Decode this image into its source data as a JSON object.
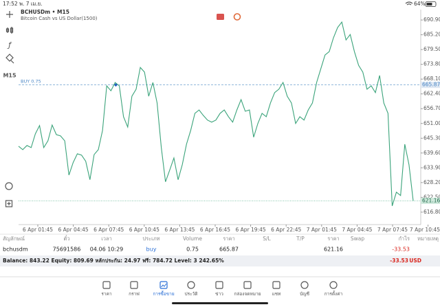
{
  "status_bar": {
    "time": "17:52",
    "date": "พ. 7 เม.ย.",
    "battery": "64%"
  },
  "toolbar": {
    "timeframe": "M15"
  },
  "chart": {
    "type": "line",
    "title": "BCHUSDm • M15",
    "subtitle": "Bitcoin Cash vs US Dollar(1500)",
    "color": "#3aa37a",
    "values": [
      642.2,
      640.9,
      642.5,
      641.7,
      647.0,
      650.2,
      641.7,
      644.3,
      650.4,
      646.7,
      646.2,
      644.3,
      631.1,
      635.9,
      639.3,
      638.8,
      636.4,
      629.3,
      639.0,
      640.9,
      648.3,
      665.5,
      663.6,
      666.8,
      665.5,
      653.6,
      649.6,
      661.5,
      664.2,
      672.6,
      670.8,
      661.5,
      666.8,
      658.9,
      641.7,
      628.5,
      633.0,
      637.7,
      629.3,
      635.1,
      643.0,
      648.3,
      654.9,
      656.2,
      654.1,
      652.3,
      651.5,
      652.3,
      654.9,
      656.2,
      653.6,
      651.5,
      656.2,
      660.2,
      655.7,
      656.2,
      645.7,
      651.0,
      654.9,
      653.6,
      658.9,
      662.9,
      664.2,
      666.8,
      661.5,
      658.9,
      651.0,
      653.6,
      652.3,
      656.2,
      658.9,
      666.8,
      672.1,
      677.4,
      678.7,
      684.0,
      688.0,
      690.1,
      683.2,
      685.3,
      678.7,
      673.4,
      670.8,
      664.2,
      665.5,
      662.9,
      669.5,
      658.9,
      654.9,
      619.2,
      624.5,
      623.2,
      643.0,
      635.1,
      621.2
    ],
    "ylim": [
      612.0,
      694.9
    ],
    "yticks": [
      {
        "value": 690.9,
        "label": "690.90"
      },
      {
        "value": 685.2,
        "label": "685.20"
      },
      {
        "value": 679.5,
        "label": "679.50"
      },
      {
        "value": 673.8,
        "label": "673.80"
      },
      {
        "value": 668.1,
        "label": "668.10"
      },
      {
        "value": 662.4,
        "label": "662.40"
      },
      {
        "value": 656.7,
        "label": "656.70"
      },
      {
        "value": 651.0,
        "label": "651.00"
      },
      {
        "value": 645.3,
        "label": "645.30"
      },
      {
        "value": 639.6,
        "label": "639.60"
      },
      {
        "value": 633.9,
        "label": "633.90"
      },
      {
        "value": 628.2,
        "label": "628.20"
      },
      {
        "value": 622.5,
        "label": "622.50"
      },
      {
        "value": 616.8,
        "label": "616.80"
      }
    ],
    "xtick_labels": [
      "6 Apr 01:45",
      "6 Apr 04:45",
      "6 Apr 07:45",
      "6 Apr 10:45",
      "6 Apr 13:45",
      "6 Apr 16:45",
      "6 Apr 19:45",
      "6 Apr 22:45",
      "7 Apr 01:45",
      "7 Apr 04:45",
      "7 Apr 07:45",
      "7 Apr 10:45"
    ],
    "order_label": "BUY 0.75",
    "order_price": 665.87,
    "bid": 621.16
  },
  "table": {
    "header": [
      "สัญลักษณ์",
      "ตั๋ว",
      "เวลา",
      "ประเภท",
      "Volume",
      "ราคา",
      "S/L",
      "T/P",
      "ราคา",
      "Swap",
      "กำไร",
      "หมายเหตุ"
    ],
    "rows": [
      [
        "bchusdm",
        "75691586",
        "04.06 10:29",
        "buy",
        "0.75",
        "665.87",
        null,
        null,
        "621.16",
        null,
        "-33.53",
        null
      ]
    ]
  },
  "summary": {
    "text": "Balance: 843.22 Equity: 809.69 หลักประกัน: 24.97 ฟรี: 784.72 Level: 3 242.65%",
    "profit": "-33.53",
    "currency": "USD"
  },
  "tabs": [
    "ราคา",
    "กราฟ",
    "การซื้อขาย",
    "ประวัติ",
    "ข่าว",
    "กล่องจดหมาย",
    "แชท",
    "บัญชี",
    "การตั้งค่า"
  ]
}
